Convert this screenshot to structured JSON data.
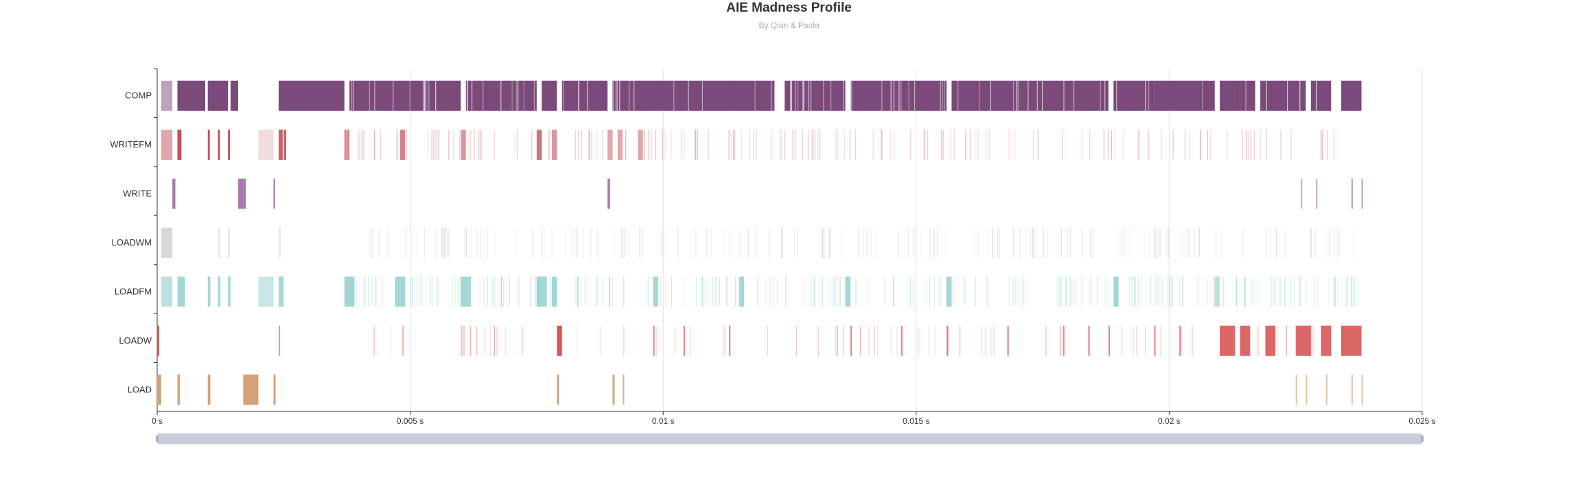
{
  "title": "AIE Madness Profile",
  "subtitle": "By Qian & Paolo",
  "chart_data": {
    "type": "timeline",
    "title": "AIE Madness Profile",
    "subtitle": "By Qian & Paolo",
    "categories": [
      "COMP",
      "WRITEFM",
      "WRITE",
      "LOADWM",
      "LOADFM",
      "LOADW",
      "LOAD"
    ],
    "x_ticks": [
      "0 s",
      "0.005 s",
      "0.01 s",
      "0.015 s",
      "0.02 s",
      "0.025 s"
    ],
    "x_unit": "s",
    "xlim": [
      0,
      0.025
    ],
    "grid": "vertical",
    "colors": {
      "COMP": "#7b4a7a",
      "WRITEFM": "#c0505a",
      "WRITE": "#a87aab",
      "LOADWM": "#b8b0ae",
      "LOADFM": "#8fcdcc",
      "LOADW": "#d85656",
      "LOAD": "#d4a276"
    },
    "series": [
      {
        "name": "COMP",
        "intervals": [
          [
            8e-05,
            0.0003,
            0.5
          ],
          [
            0.0004,
            0.00095,
            1
          ],
          [
            0.001,
            0.0014,
            1
          ],
          [
            0.00145,
            0.0016,
            1
          ],
          [
            0.0024,
            0.0037,
            1
          ],
          [
            0.0038,
            0.0047,
            1
          ],
          [
            0.0047,
            0.006,
            1
          ],
          [
            0.0061,
            0.0075,
            1
          ],
          [
            0.0076,
            0.0079,
            1
          ],
          [
            0.008,
            0.0089,
            1
          ],
          [
            0.009,
            0.0098,
            1
          ],
          [
            0.0098,
            0.0114,
            1
          ],
          [
            0.0114,
            0.0122,
            1
          ],
          [
            0.0124,
            0.0136,
            1
          ],
          [
            0.0137,
            0.0156,
            1
          ],
          [
            0.0157,
            0.0188,
            1
          ],
          [
            0.0189,
            0.0197,
            1
          ],
          [
            0.0197,
            0.0209,
            1
          ],
          [
            0.021,
            0.0214,
            1
          ],
          [
            0.0214,
            0.0217,
            1
          ],
          [
            0.0218,
            0.0227,
            1
          ],
          [
            0.0228,
            0.0232,
            1
          ],
          [
            0.0234,
            0.0238,
            1
          ]
        ]
      },
      {
        "name": "WRITEFM",
        "intervals": [
          [
            8e-05,
            0.0003,
            0.5
          ],
          [
            0.0004,
            0.00048,
            1
          ],
          [
            0.001,
            0.00104,
            1
          ],
          [
            0.0012,
            0.00124,
            1
          ],
          [
            0.0014,
            0.00144,
            1
          ],
          [
            0.002,
            0.0023,
            0.2
          ],
          [
            0.0024,
            0.00248,
            0.9
          ],
          [
            0.0025,
            0.00255,
            0.9
          ],
          [
            0.0037,
            0.0038,
            0.6
          ],
          [
            0.0048,
            0.0049,
            0.7
          ],
          [
            0.006,
            0.0061,
            0.6
          ],
          [
            0.0075,
            0.0076,
            0.8
          ],
          [
            0.0078,
            0.0079,
            0.6
          ],
          [
            0.0089,
            0.009,
            0.5
          ],
          [
            0.0091,
            0.0092,
            0.5
          ],
          [
            0.0095,
            0.0096,
            0.5
          ]
        ]
      },
      {
        "name": "WRITE",
        "intervals": [
          [
            0.0003,
            0.00036,
            1
          ],
          [
            0.0016,
            0.0017,
            1
          ],
          [
            0.0017,
            0.00175,
            1
          ],
          [
            0.0023,
            0.00233,
            1
          ],
          [
            0.0089,
            0.00895,
            1
          ],
          [
            0.0226,
            0.02263,
            0.6
          ],
          [
            0.0229,
            0.02293,
            0.6
          ],
          [
            0.0236,
            0.02363,
            0.7
          ],
          [
            0.0238,
            0.02383,
            0.7
          ]
        ]
      },
      {
        "name": "LOADWM",
        "intervals": [
          [
            8e-05,
            0.0003,
            0.5
          ],
          [
            0.0012,
            0.00124,
            0.3
          ],
          [
            0.0014,
            0.00144,
            0.3
          ],
          [
            0.0024,
            0.00244,
            0.3
          ]
        ]
      },
      {
        "name": "LOADFM",
        "intervals": [
          [
            8e-05,
            0.0003,
            0.6
          ],
          [
            0.0004,
            0.00055,
            0.8
          ],
          [
            0.001,
            0.00105,
            0.8
          ],
          [
            0.0012,
            0.00125,
            0.8
          ],
          [
            0.0014,
            0.00145,
            0.8
          ],
          [
            0.002,
            0.0023,
            0.5
          ],
          [
            0.0024,
            0.0025,
            0.8
          ],
          [
            0.0037,
            0.0039,
            0.8
          ],
          [
            0.0047,
            0.0049,
            0.8
          ],
          [
            0.006,
            0.0062,
            0.8
          ],
          [
            0.0075,
            0.0077,
            0.8
          ],
          [
            0.0078,
            0.0079,
            0.8
          ],
          [
            0.0083,
            0.00833,
            0.6
          ],
          [
            0.0098,
            0.0099,
            0.8
          ],
          [
            0.0115,
            0.0116,
            0.8
          ],
          [
            0.0136,
            0.0137,
            0.8
          ],
          [
            0.0156,
            0.0157,
            0.8
          ],
          [
            0.0189,
            0.019,
            0.8
          ],
          [
            0.0209,
            0.021,
            0.6
          ]
        ]
      },
      {
        "name": "LOADW",
        "intervals": [
          [
            0.0,
            4e-05,
            1
          ],
          [
            0.0024,
            0.00243,
            0.6
          ],
          [
            0.0079,
            0.008,
            1
          ],
          [
            0.0098,
            0.00983,
            0.7
          ],
          [
            0.0104,
            0.01043,
            0.7
          ],
          [
            0.0113,
            0.01133,
            0.7
          ],
          [
            0.0137,
            0.01373,
            0.7
          ],
          [
            0.0147,
            0.01473,
            0.7
          ],
          [
            0.0156,
            0.01563,
            0.7
          ],
          [
            0.0168,
            0.01683,
            0.7
          ],
          [
            0.0179,
            0.01793,
            0.7
          ],
          [
            0.0184,
            0.01843,
            0.7
          ],
          [
            0.0188,
            0.01883,
            0.7
          ],
          [
            0.0197,
            0.01973,
            0.7
          ],
          [
            0.0202,
            0.02023,
            0.7
          ],
          [
            0.021,
            0.0213,
            0.9
          ],
          [
            0.0214,
            0.0216,
            0.9
          ],
          [
            0.0219,
            0.0221,
            0.9
          ],
          [
            0.0225,
            0.0228,
            0.9
          ],
          [
            0.023,
            0.0232,
            0.9
          ],
          [
            0.0234,
            0.0238,
            0.9
          ]
        ]
      },
      {
        "name": "LOAD",
        "intervals": [
          [
            0.0,
            8e-05,
            1
          ],
          [
            0.0004,
            0.00045,
            1
          ],
          [
            0.001,
            0.00105,
            1
          ],
          [
            0.0017,
            0.002,
            1
          ],
          [
            0.0023,
            0.00234,
            1
          ],
          [
            0.0079,
            0.00794,
            1
          ],
          [
            0.009,
            0.00904,
            1
          ],
          [
            0.0092,
            0.00923,
            0.8
          ],
          [
            0.0225,
            0.02253,
            0.6
          ],
          [
            0.0227,
            0.02273,
            0.6
          ],
          [
            0.0231,
            0.02313,
            0.6
          ],
          [
            0.0236,
            0.02363,
            0.6
          ],
          [
            0.0238,
            0.02383,
            0.6
          ]
        ]
      }
    ]
  }
}
